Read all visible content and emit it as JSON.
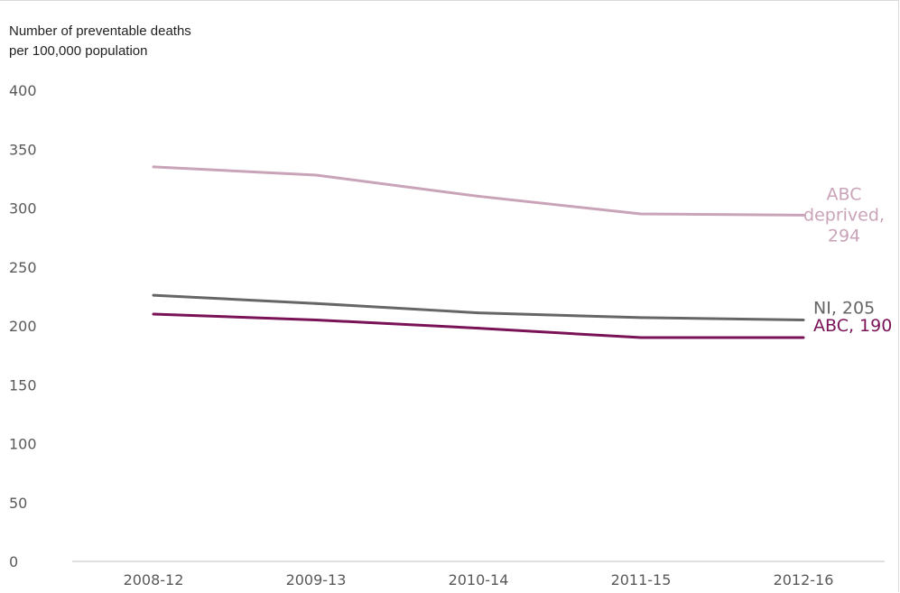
{
  "chart_data": {
    "type": "line",
    "title": "",
    "xlabel": "",
    "ylabel_lines": [
      "Number of preventable deaths",
      "per 100,000 population"
    ],
    "categories": [
      "2008-12",
      "2009-13",
      "2010-14",
      "2011-15",
      "2012-16"
    ],
    "ylim": [
      0,
      400
    ],
    "yticks": [
      0,
      50,
      100,
      150,
      200,
      250,
      300,
      350,
      400
    ],
    "grid": false,
    "legend": "none (direct labels at line ends)",
    "series": [
      {
        "name": "ABC deprived",
        "label_lines": [
          "ABC",
          "deprived,",
          "294"
        ],
        "color": "#c9a3b8",
        "values": [
          335,
          328,
          310,
          295,
          294
        ]
      },
      {
        "name": "NI",
        "label_lines": [
          "NI, 205"
        ],
        "color": "#666666",
        "values": [
          226,
          219,
          211,
          207,
          205
        ]
      },
      {
        "name": "ABC",
        "label_lines": [
          "ABC, 190"
        ],
        "color": "#7a1257",
        "values": [
          210,
          205,
          198,
          190,
          190
        ]
      }
    ]
  }
}
